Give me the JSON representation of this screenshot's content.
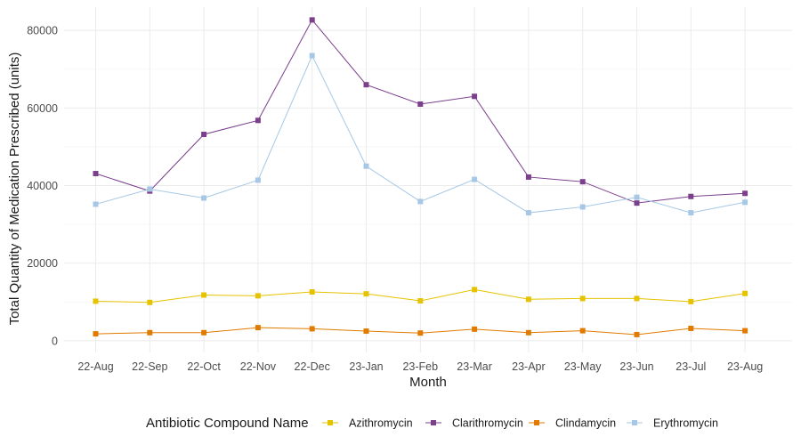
{
  "chart_data": {
    "type": "line",
    "title": "",
    "xlabel": "Month",
    "ylabel": "Total Quantity of Medication Prescribed (units)",
    "categories": [
      "22-Aug",
      "22-Sep",
      "22-Oct",
      "22-Nov",
      "22-Dec",
      "23-Jan",
      "23-Feb",
      "23-Mar",
      "23-Apr",
      "23-May",
      "23-Jun",
      "23-Jul",
      "23-Aug"
    ],
    "yticks": [
      0,
      20000,
      40000,
      60000,
      80000
    ],
    "ytick_labels": [
      "0",
      "20000",
      "40000",
      "60000",
      "80000"
    ],
    "ylim": [
      -3000,
      86000
    ],
    "grid": true,
    "legend": {
      "title": "Antibiotic Compound Name",
      "position": "bottom"
    },
    "series": [
      {
        "name": "Azithromycin",
        "color": "#e6c300",
        "values": [
          10200,
          9900,
          11800,
          11600,
          12600,
          12100,
          10300,
          13200,
          10700,
          10900,
          10900,
          10100,
          12200
        ]
      },
      {
        "name": "Clarithromycin",
        "color": "#7b3f8c",
        "values": [
          43100,
          38600,
          53200,
          56800,
          82700,
          66000,
          61000,
          63000,
          42200,
          41000,
          35500,
          37200,
          38000
        ]
      },
      {
        "name": "Clindamycin",
        "color": "#e07b00",
        "values": [
          1800,
          2100,
          2100,
          3400,
          3100,
          2500,
          2000,
          3000,
          2100,
          2600,
          1600,
          3200,
          2600
        ]
      },
      {
        "name": "Erythromycin",
        "color": "#a6c8e6",
        "values": [
          35200,
          39100,
          36800,
          41400,
          73500,
          45000,
          35900,
          41600,
          33000,
          34500,
          37000,
          33000,
          35700
        ]
      }
    ]
  }
}
